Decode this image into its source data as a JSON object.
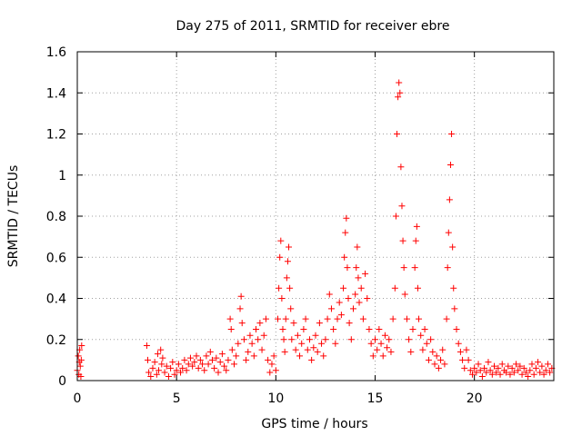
{
  "chart_data": {
    "type": "scatter",
    "title": "Day 275 of 2011, SRMTID for receiver ebre",
    "xlabel": "GPS time / hours",
    "ylabel": "SRMTID / TECUs",
    "xlim": [
      0,
      24
    ],
    "ylim": [
      0,
      1.6
    ],
    "xticks": [
      0,
      5,
      10,
      15,
      20
    ],
    "xtick_labels": [
      "0",
      "5",
      "10",
      "15",
      "20"
    ],
    "yticks": [
      0,
      0.2,
      0.4,
      0.6,
      0.8,
      1.0,
      1.2,
      1.4,
      1.6
    ],
    "ytick_labels": [
      "0",
      "0.2",
      "0.4",
      "0.6",
      "0.8",
      "1",
      "1.2",
      "1.4",
      "1.6"
    ],
    "grid": true,
    "marker": "+",
    "color": "#ff0000",
    "series": [
      {
        "name": "SRMTID",
        "points": [
          [
            0.0,
            0.05
          ],
          [
            0.05,
            0.12
          ],
          [
            0.08,
            0.03
          ],
          [
            0.1,
            0.09
          ],
          [
            0.12,
            0.15
          ],
          [
            0.15,
            0.07
          ],
          [
            0.18,
            0.02
          ],
          [
            0.2,
            0.1
          ],
          [
            0.22,
            0.17
          ],
          [
            3.5,
            0.17
          ],
          [
            3.55,
            0.1
          ],
          [
            3.6,
            0.04
          ],
          [
            3.7,
            0.02
          ],
          [
            3.8,
            0.06
          ],
          [
            3.9,
            0.09
          ],
          [
            4.0,
            0.03
          ],
          [
            4.05,
            0.13
          ],
          [
            4.1,
            0.05
          ],
          [
            4.2,
            0.15
          ],
          [
            4.25,
            0.08
          ],
          [
            4.3,
            0.11
          ],
          [
            4.4,
            0.04
          ],
          [
            4.5,
            0.07
          ],
          [
            4.6,
            0.02
          ],
          [
            4.7,
            0.06
          ],
          [
            4.8,
            0.09
          ],
          [
            4.9,
            0.03
          ],
          [
            5.0,
            0.05
          ],
          [
            5.1,
            0.08
          ],
          [
            5.2,
            0.04
          ],
          [
            5.3,
            0.06
          ],
          [
            5.4,
            0.1
          ],
          [
            5.5,
            0.05
          ],
          [
            5.6,
            0.08
          ],
          [
            5.7,
            0.11
          ],
          [
            5.8,
            0.07
          ],
          [
            5.9,
            0.09
          ],
          [
            6.0,
            0.12
          ],
          [
            6.1,
            0.06
          ],
          [
            6.2,
            0.1
          ],
          [
            6.3,
            0.08
          ],
          [
            6.4,
            0.05
          ],
          [
            6.5,
            0.12
          ],
          [
            6.6,
            0.08
          ],
          [
            6.7,
            0.14
          ],
          [
            6.8,
            0.1
          ],
          [
            6.9,
            0.06
          ],
          [
            7.0,
            0.11
          ],
          [
            7.1,
            0.04
          ],
          [
            7.2,
            0.09
          ],
          [
            7.3,
            0.13
          ],
          [
            7.4,
            0.07
          ],
          [
            7.5,
            0.05
          ],
          [
            7.6,
            0.1
          ],
          [
            7.7,
            0.3
          ],
          [
            7.75,
            0.25
          ],
          [
            7.8,
            0.15
          ],
          [
            7.9,
            0.08
          ],
          [
            8.0,
            0.12
          ],
          [
            8.1,
            0.18
          ],
          [
            8.2,
            0.35
          ],
          [
            8.25,
            0.41
          ],
          [
            8.3,
            0.28
          ],
          [
            8.4,
            0.2
          ],
          [
            8.5,
            0.1
          ],
          [
            8.6,
            0.14
          ],
          [
            8.7,
            0.22
          ],
          [
            8.8,
            0.18
          ],
          [
            8.9,
            0.12
          ],
          [
            9.0,
            0.25
          ],
          [
            9.1,
            0.2
          ],
          [
            9.2,
            0.28
          ],
          [
            9.3,
            0.15
          ],
          [
            9.4,
            0.22
          ],
          [
            9.5,
            0.3
          ],
          [
            9.6,
            0.1
          ],
          [
            9.7,
            0.04
          ],
          [
            9.8,
            0.08
          ],
          [
            9.9,
            0.12
          ],
          [
            10.0,
            0.05
          ],
          [
            10.1,
            0.3
          ],
          [
            10.15,
            0.45
          ],
          [
            10.2,
            0.6
          ],
          [
            10.25,
            0.68
          ],
          [
            10.3,
            0.4
          ],
          [
            10.35,
            0.25
          ],
          [
            10.4,
            0.2
          ],
          [
            10.45,
            0.14
          ],
          [
            10.5,
            0.3
          ],
          [
            10.55,
            0.5
          ],
          [
            10.6,
            0.58
          ],
          [
            10.65,
            0.65
          ],
          [
            10.7,
            0.45
          ],
          [
            10.75,
            0.35
          ],
          [
            10.8,
            0.2
          ],
          [
            10.9,
            0.28
          ],
          [
            11.0,
            0.15
          ],
          [
            11.1,
            0.22
          ],
          [
            11.2,
            0.12
          ],
          [
            11.3,
            0.18
          ],
          [
            11.4,
            0.25
          ],
          [
            11.5,
            0.3
          ],
          [
            11.6,
            0.15
          ],
          [
            11.7,
            0.2
          ],
          [
            11.8,
            0.1
          ],
          [
            11.9,
            0.16
          ],
          [
            12.0,
            0.22
          ],
          [
            12.1,
            0.14
          ],
          [
            12.2,
            0.28
          ],
          [
            12.3,
            0.18
          ],
          [
            12.4,
            0.12
          ],
          [
            12.5,
            0.2
          ],
          [
            12.6,
            0.3
          ],
          [
            12.7,
            0.42
          ],
          [
            12.8,
            0.35
          ],
          [
            12.9,
            0.25
          ],
          [
            13.0,
            0.18
          ],
          [
            13.1,
            0.3
          ],
          [
            13.2,
            0.38
          ],
          [
            13.3,
            0.32
          ],
          [
            13.4,
            0.45
          ],
          [
            13.45,
            0.6
          ],
          [
            13.5,
            0.72
          ],
          [
            13.55,
            0.79
          ],
          [
            13.6,
            0.55
          ],
          [
            13.65,
            0.4
          ],
          [
            13.7,
            0.28
          ],
          [
            13.8,
            0.2
          ],
          [
            13.9,
            0.35
          ],
          [
            14.0,
            0.42
          ],
          [
            14.05,
            0.55
          ],
          [
            14.1,
            0.65
          ],
          [
            14.15,
            0.5
          ],
          [
            14.2,
            0.38
          ],
          [
            14.3,
            0.45
          ],
          [
            14.4,
            0.3
          ],
          [
            14.5,
            0.52
          ],
          [
            14.6,
            0.4
          ],
          [
            14.7,
            0.25
          ],
          [
            14.8,
            0.18
          ],
          [
            14.9,
            0.12
          ],
          [
            15.0,
            0.2
          ],
          [
            15.1,
            0.15
          ],
          [
            15.2,
            0.25
          ],
          [
            15.3,
            0.18
          ],
          [
            15.4,
            0.12
          ],
          [
            15.5,
            0.22
          ],
          [
            15.6,
            0.16
          ],
          [
            15.7,
            0.2
          ],
          [
            15.8,
            0.14
          ],
          [
            15.9,
            0.3
          ],
          [
            16.0,
            0.45
          ],
          [
            16.05,
            0.8
          ],
          [
            16.1,
            1.2
          ],
          [
            16.15,
            1.38
          ],
          [
            16.2,
            1.45
          ],
          [
            16.25,
            1.4
          ],
          [
            16.3,
            1.04
          ],
          [
            16.35,
            0.85
          ],
          [
            16.4,
            0.68
          ],
          [
            16.45,
            0.55
          ],
          [
            16.5,
            0.42
          ],
          [
            16.6,
            0.3
          ],
          [
            16.7,
            0.2
          ],
          [
            16.8,
            0.14
          ],
          [
            16.9,
            0.25
          ],
          [
            17.0,
            0.55
          ],
          [
            17.05,
            0.68
          ],
          [
            17.1,
            0.75
          ],
          [
            17.15,
            0.45
          ],
          [
            17.2,
            0.3
          ],
          [
            17.3,
            0.22
          ],
          [
            17.4,
            0.15
          ],
          [
            17.5,
            0.25
          ],
          [
            17.6,
            0.18
          ],
          [
            17.7,
            0.1
          ],
          [
            17.8,
            0.2
          ],
          [
            17.9,
            0.14
          ],
          [
            18.0,
            0.08
          ],
          [
            18.1,
            0.12
          ],
          [
            18.2,
            0.06
          ],
          [
            18.3,
            0.1
          ],
          [
            18.4,
            0.15
          ],
          [
            18.5,
            0.08
          ],
          [
            18.6,
            0.3
          ],
          [
            18.65,
            0.55
          ],
          [
            18.7,
            0.72
          ],
          [
            18.75,
            0.88
          ],
          [
            18.8,
            1.05
          ],
          [
            18.85,
            1.2
          ],
          [
            18.9,
            0.65
          ],
          [
            18.95,
            0.45
          ],
          [
            19.0,
            0.35
          ],
          [
            19.1,
            0.25
          ],
          [
            19.2,
            0.18
          ],
          [
            19.3,
            0.14
          ],
          [
            19.4,
            0.1
          ],
          [
            19.5,
            0.06
          ],
          [
            19.6,
            0.15
          ],
          [
            19.7,
            0.1
          ],
          [
            19.8,
            0.05
          ],
          [
            19.9,
            0.03
          ],
          [
            20.0,
            0.06
          ],
          [
            20.1,
            0.04
          ],
          [
            20.2,
            0.08
          ],
          [
            20.3,
            0.05
          ],
          [
            20.4,
            0.02
          ],
          [
            20.5,
            0.06
          ],
          [
            20.6,
            0.04
          ],
          [
            20.7,
            0.09
          ],
          [
            20.8,
            0.05
          ],
          [
            20.9,
            0.03
          ],
          [
            21.0,
            0.07
          ],
          [
            21.1,
            0.04
          ],
          [
            21.2,
            0.06
          ],
          [
            21.3,
            0.03
          ],
          [
            21.4,
            0.08
          ],
          [
            21.5,
            0.05
          ],
          [
            21.6,
            0.04
          ],
          [
            21.7,
            0.07
          ],
          [
            21.8,
            0.03
          ],
          [
            21.9,
            0.06
          ],
          [
            22.0,
            0.04
          ],
          [
            22.1,
            0.08
          ],
          [
            22.2,
            0.05
          ],
          [
            22.3,
            0.07
          ],
          [
            22.4,
            0.03
          ],
          [
            22.5,
            0.06
          ],
          [
            22.6,
            0.04
          ],
          [
            22.7,
            0.02
          ],
          [
            22.8,
            0.05
          ],
          [
            22.9,
            0.08
          ],
          [
            23.0,
            0.03
          ],
          [
            23.1,
            0.06
          ],
          [
            23.2,
            0.09
          ],
          [
            23.3,
            0.04
          ],
          [
            23.4,
            0.07
          ],
          [
            23.5,
            0.03
          ],
          [
            23.6,
            0.05
          ],
          [
            23.7,
            0.08
          ],
          [
            23.8,
            0.04
          ],
          [
            23.9,
            0.06
          ]
        ]
      }
    ]
  }
}
